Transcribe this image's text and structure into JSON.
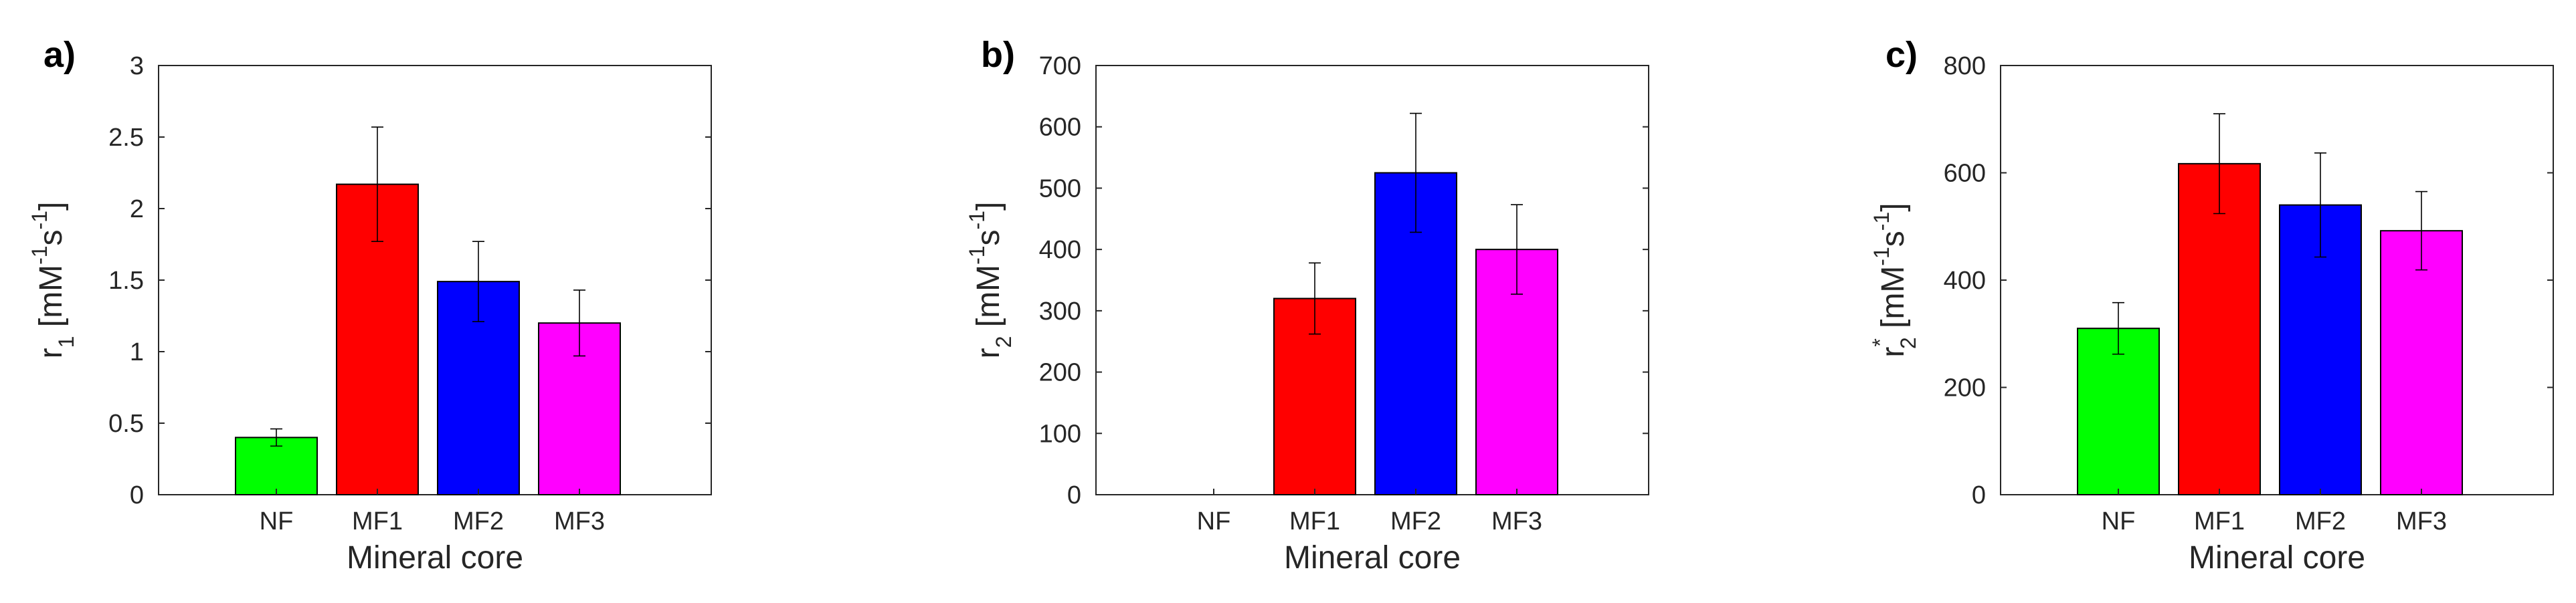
{
  "figure": {
    "background": "#ffffff"
  },
  "chart_data": [
    {
      "panel_label": "a)",
      "type": "bar",
      "categories": [
        "NF",
        "MF1",
        "MF2",
        "MF3"
      ],
      "values": [
        0.4,
        2.17,
        1.49,
        1.2
      ],
      "errors": [
        0.06,
        0.4,
        0.28,
        0.23
      ],
      "colors": [
        "#00ff00",
        "#ff0000",
        "#0000ff",
        "#ff00ff"
      ],
      "ylim": [
        0,
        3
      ],
      "yticks": [
        0,
        0.5,
        1,
        1.5,
        2,
        2.5,
        3
      ],
      "ytick_labels": [
        "0",
        "0.5",
        "1",
        "1.5",
        "2",
        "2.5",
        "3"
      ],
      "xlabel": "Mineral core",
      "ylabel": {
        "base": "r",
        "sub": "1",
        "sup": "",
        "unit_a": " [mM",
        "unit_sup1": "-1",
        "unit_b": "s",
        "unit_sup2": "-1",
        "unit_c": "]"
      },
      "title": ""
    },
    {
      "panel_label": "b)",
      "type": "bar",
      "categories": [
        "NF",
        "MF1",
        "MF2",
        "MF3"
      ],
      "values": [
        0,
        320,
        525,
        400
      ],
      "errors": [
        0,
        58,
        97,
        73
      ],
      "colors": [
        "#00ff00",
        "#ff0000",
        "#0000ff",
        "#ff00ff"
      ],
      "ylim": [
        0,
        700
      ],
      "yticks": [
        0,
        100,
        200,
        300,
        400,
        500,
        600,
        700
      ],
      "ytick_labels": [
        "0",
        "100",
        "200",
        "300",
        "400",
        "500",
        "600",
        "700"
      ],
      "xlabel": "Mineral core",
      "ylabel": {
        "base": "r",
        "sub": "2",
        "sup": "",
        "unit_a": " [mM",
        "unit_sup1": "-1",
        "unit_b": "s",
        "unit_sup2": "-1",
        "unit_c": "]"
      },
      "title": ""
    },
    {
      "panel_label": "c)",
      "type": "bar",
      "categories": [
        "NF",
        "MF1",
        "MF2",
        "MF3"
      ],
      "values": [
        310,
        617,
        540,
        492
      ],
      "errors": [
        48,
        93,
        97,
        73
      ],
      "colors": [
        "#00ff00",
        "#ff0000",
        "#0000ff",
        "#ff00ff"
      ],
      "ylim": [
        0,
        800
      ],
      "yticks": [
        0,
        200,
        400,
        600,
        800
      ],
      "ytick_labels": [
        "0",
        "200",
        "400",
        "600",
        "800"
      ],
      "xlabel": "Mineral core",
      "ylabel": {
        "base": "r",
        "sub": "2",
        "sup": "*",
        "unit_a": " [mM",
        "unit_sup1": "-1",
        "unit_b": "s",
        "unit_sup2": "-1",
        "unit_c": "]"
      },
      "title": ""
    }
  ]
}
